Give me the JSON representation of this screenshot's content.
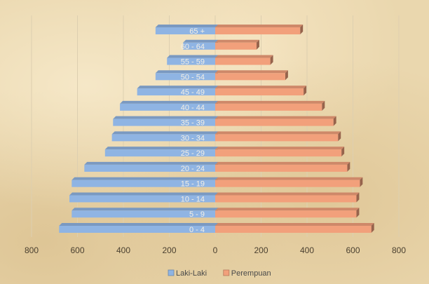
{
  "chart_data": {
    "type": "bar",
    "orientation": "horizontal",
    "layout": "population-pyramid",
    "categories": [
      "0 - 4",
      "5 - 9",
      "10 - 14",
      "15 - 19",
      "20 - 24",
      "25 - 29",
      "30 - 34",
      "35 - 39",
      "40 - 44",
      "45 - 49",
      "50 - 54",
      "55 - 59",
      "60 - 64",
      "65 +"
    ],
    "series": [
      {
        "name": "Laki-Laki",
        "values": [
          -680,
          -625,
          -635,
          -625,
          -570,
          -480,
          -450,
          -445,
          -415,
          -340,
          -260,
          -210,
          -140,
          -260
        ],
        "color": "#8fb4e3"
      },
      {
        "name": "Perempuan",
        "values": [
          680,
          615,
          615,
          630,
          575,
          550,
          535,
          515,
          465,
          385,
          305,
          240,
          180,
          370
        ],
        "color": "#f2a07b"
      }
    ],
    "xlim": [
      -800,
      800
    ],
    "xticks": [
      -800,
      -600,
      -400,
      -200,
      0,
      200,
      400,
      600,
      800
    ],
    "xtick_labels": [
      "800",
      "600",
      "400",
      "200",
      "0",
      "200",
      "400",
      "600",
      "800"
    ],
    "grid": true,
    "legend": "bottom"
  }
}
